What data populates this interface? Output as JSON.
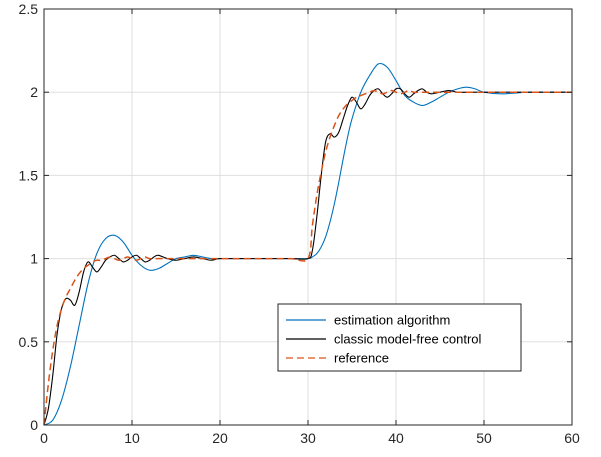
{
  "chart_data": {
    "type": "line",
    "title": "",
    "xlabel": "",
    "ylabel": "",
    "xlim": [
      0,
      60
    ],
    "ylim": [
      0,
      2.5
    ],
    "x_ticks": [
      0,
      10,
      20,
      30,
      40,
      50,
      60
    ],
    "y_ticks": [
      0,
      0.5,
      1,
      1.5,
      2,
      2.5
    ],
    "x_tick_labels": [
      "0",
      "10",
      "20",
      "30",
      "40",
      "50",
      "60"
    ],
    "y_tick_labels": [
      "0",
      "0.5",
      "1",
      "1.5",
      "2",
      "2.5"
    ],
    "grid": true,
    "legend_position": "lower-right",
    "series": [
      {
        "name": "estimation algorithm",
        "color": "#0072BD",
        "dash": "solid",
        "x": [
          0,
          1,
          2,
          3,
          4,
          5,
          6,
          7,
          8,
          9,
          10,
          11,
          12,
          13,
          14,
          15,
          16,
          17,
          18,
          19,
          20,
          22,
          25,
          28,
          30,
          30.5,
          31,
          31.5,
          32,
          32.5,
          33,
          33.5,
          34,
          34.5,
          35,
          36,
          37,
          38,
          39,
          40,
          41,
          42,
          43,
          44,
          45,
          46,
          47,
          48,
          49,
          50,
          52,
          55,
          58,
          60
        ],
        "y": [
          0,
          0.03,
          0.15,
          0.35,
          0.6,
          0.85,
          1.03,
          1.12,
          1.14,
          1.1,
          1.02,
          0.96,
          0.93,
          0.94,
          0.97,
          1.0,
          1.01,
          1.02,
          1.01,
          1.0,
          1.0,
          1.0,
          1.0,
          1.0,
          1.0,
          1.01,
          1.03,
          1.07,
          1.13,
          1.22,
          1.33,
          1.46,
          1.6,
          1.73,
          1.84,
          2.0,
          2.1,
          2.17,
          2.15,
          2.07,
          1.98,
          1.94,
          1.92,
          1.94,
          1.97,
          2.0,
          2.02,
          2.03,
          2.02,
          2.0,
          1.99,
          2.0,
          2.0,
          2.0
        ]
      },
      {
        "name": "classic model-free control",
        "color": "#000000",
        "dash": "solid",
        "x": [
          0,
          0.5,
          1,
          1.5,
          2,
          2.5,
          3,
          3.5,
          4,
          4.5,
          5,
          5.5,
          6,
          6.5,
          7,
          7.5,
          8,
          8.5,
          9,
          9.5,
          10,
          10.5,
          11,
          11.5,
          12,
          12.5,
          13,
          14,
          15,
          16,
          17,
          18,
          19,
          20,
          22,
          25,
          28,
          30,
          30.5,
          31,
          31.5,
          32,
          32.5,
          33,
          33.5,
          34,
          34.5,
          35,
          35.5,
          36,
          36.5,
          37,
          37.5,
          38,
          38.5,
          39,
          39.5,
          40,
          40.5,
          41,
          41.5,
          42,
          42.5,
          43,
          43.5,
          44,
          45,
          46,
          47,
          48,
          50,
          55,
          60
        ],
        "y": [
          0,
          0.1,
          0.3,
          0.55,
          0.7,
          0.76,
          0.75,
          0.72,
          0.8,
          0.92,
          0.98,
          0.95,
          0.92,
          0.95,
          0.99,
          1.01,
          1.02,
          1.0,
          0.98,
          0.99,
          1.01,
          1.02,
          1.0,
          0.98,
          0.99,
          1.01,
          1.02,
          1.0,
          0.99,
          1.0,
          1.01,
          1.0,
          0.99,
          1.0,
          1.0,
          1.0,
          1.0,
          1.0,
          1.05,
          1.25,
          1.5,
          1.7,
          1.75,
          1.73,
          1.76,
          1.84,
          1.92,
          1.97,
          1.94,
          1.9,
          1.93,
          1.98,
          2.01,
          2.02,
          1.99,
          1.97,
          1.99,
          2.02,
          2.02,
          1.99,
          1.97,
          1.99,
          2.01,
          2.02,
          2.0,
          1.99,
          2.0,
          2.01,
          2.0,
          2.0,
          2.0,
          2.0,
          2.0
        ]
      },
      {
        "name": "reference",
        "color": "#D95319",
        "dash": "dashed",
        "x": [
          0,
          0.5,
          1,
          1.5,
          2,
          2.5,
          3,
          3.5,
          4,
          4.5,
          5,
          5.5,
          6,
          6.5,
          7,
          7.5,
          8,
          8.5,
          9,
          9.5,
          10,
          10.5,
          11,
          11.5,
          12,
          13,
          14,
          15,
          16,
          17,
          18,
          19,
          20,
          22,
          25,
          28,
          30,
          30.5,
          31,
          31.5,
          32,
          32.5,
          33,
          33.5,
          34,
          34.5,
          35,
          35.5,
          36,
          36.5,
          37,
          37.5,
          38,
          38.5,
          39,
          39.5,
          40,
          40.5,
          41,
          41.5,
          42,
          43,
          44,
          45,
          46,
          48,
          50,
          55,
          60
        ],
        "y": [
          0,
          0.25,
          0.45,
          0.6,
          0.7,
          0.77,
          0.82,
          0.87,
          0.91,
          0.94,
          0.96,
          0.98,
          0.99,
          0.99,
          1.0,
          1.01,
          1.0,
          0.99,
          1.0,
          1.01,
          1.0,
          0.99,
          1.0,
          1.01,
          1.0,
          1.0,
          1.0,
          1.0,
          1.0,
          1.0,
          1.0,
          1.0,
          1.0,
          1.0,
          1.0,
          1.0,
          1.0,
          1.2,
          1.38,
          1.52,
          1.64,
          1.73,
          1.8,
          1.86,
          1.9,
          1.93,
          1.95,
          1.97,
          1.98,
          1.99,
          2.0,
          2.01,
          2.0,
          1.99,
          2.0,
          2.01,
          2.0,
          1.99,
          2.0,
          2.01,
          2.0,
          2.0,
          2.0,
          2.0,
          2.0,
          2.0,
          2.0,
          2.0,
          2.0
        ]
      }
    ]
  }
}
